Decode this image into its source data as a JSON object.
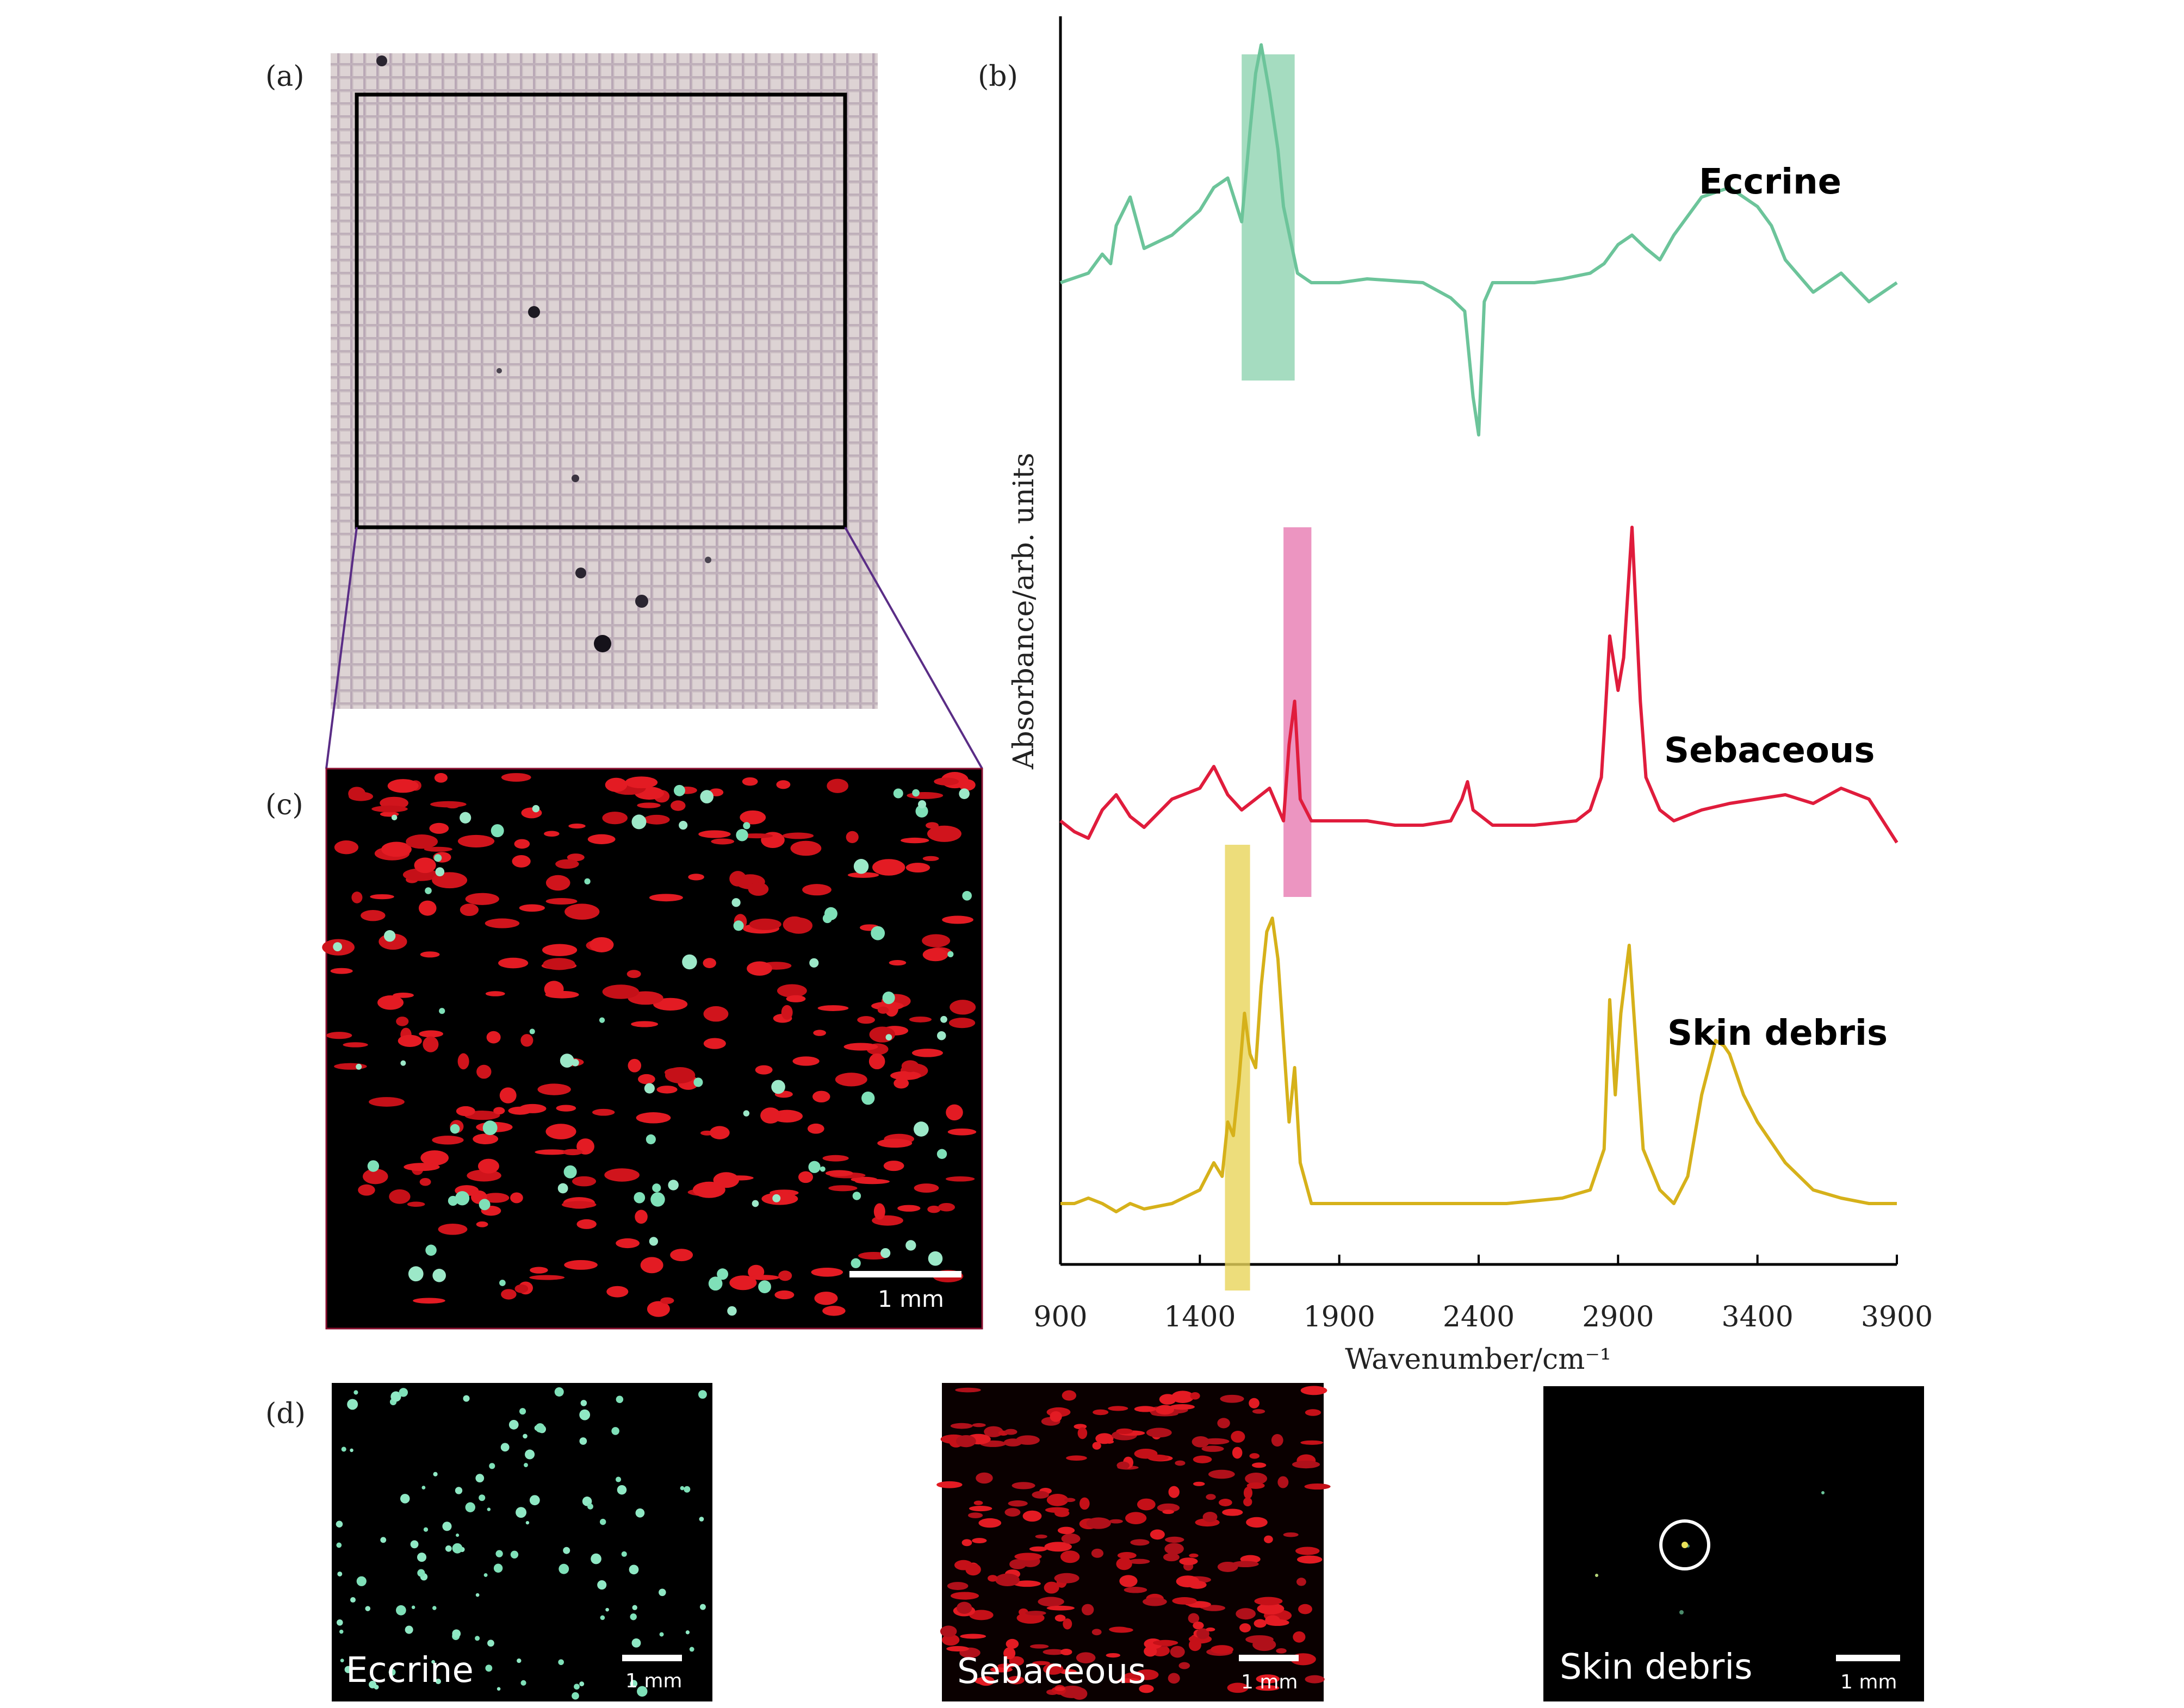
{
  "panels": {
    "a": "(a)",
    "b": "(b)",
    "c": "(c)",
    "d": "(d)"
  },
  "colors": {
    "eccrine": "#6cc49a",
    "sebaceous": "#e01c3c",
    "skin_debris": "#d6b11a",
    "eccrine_band": "#8fd3b0",
    "sebaceous_band": "#e77ab2",
    "skin_debris_band": "#e9d45a"
  },
  "scale_bar": "1 mm",
  "maps": {
    "eccrine": "Eccrine",
    "sebaceous": "Sebaceous",
    "skin_debris": "Skin debris"
  },
  "chart_data": {
    "type": "line",
    "xlabel": "Wavenumber/cm⁻¹",
    "ylabel": "Absorbance/arb. units",
    "xlim": [
      900,
      3900
    ],
    "x_ticks": [
      "900",
      "1400",
      "1900",
      "2400",
      "2900",
      "3400",
      "3900"
    ],
    "grid": false,
    "series": [
      {
        "name": "Eccrine",
        "x": [
          900,
          1000,
          1050,
          1080,
          1100,
          1150,
          1200,
          1300,
          1400,
          1450,
          1500,
          1550,
          1580,
          1600,
          1620,
          1650,
          1680,
          1700,
          1750,
          1800,
          1900,
          2000,
          2100,
          2200,
          2300,
          2350,
          2380,
          2400,
          2420,
          2450,
          2500,
          2600,
          2700,
          2800,
          2850,
          2900,
          2950,
          3000,
          3050,
          3100,
          3200,
          3300,
          3400,
          3450,
          3500,
          3600,
          3700,
          3800,
          3900
        ],
        "y": [
          0.0,
          0.05,
          0.15,
          0.1,
          0.3,
          0.45,
          0.18,
          0.25,
          0.38,
          0.5,
          0.55,
          0.32,
          0.8,
          1.1,
          1.25,
          1.0,
          0.7,
          0.4,
          0.05,
          0.0,
          0.0,
          0.02,
          0.01,
          0.0,
          -0.08,
          -0.15,
          -0.6,
          -0.8,
          -0.1,
          0.0,
          0.0,
          0.0,
          0.02,
          0.05,
          0.1,
          0.2,
          0.25,
          0.18,
          0.12,
          0.25,
          0.45,
          0.5,
          0.4,
          0.3,
          0.12,
          -0.05,
          0.05,
          -0.1,
          0.0
        ]
      },
      {
        "name": "Sebaceous",
        "x": [
          900,
          950,
          1000,
          1050,
          1100,
          1150,
          1200,
          1300,
          1400,
          1450,
          1500,
          1550,
          1600,
          1650,
          1700,
          1720,
          1740,
          1760,
          1800,
          1900,
          2000,
          2100,
          2200,
          2300,
          2340,
          2360,
          2380,
          2450,
          2600,
          2750,
          2800,
          2840,
          2850,
          2870,
          2900,
          2920,
          2950,
          2980,
          3000,
          3050,
          3100,
          3200,
          3300,
          3400,
          3500,
          3600,
          3700,
          3800,
          3850,
          3900
        ],
        "y": [
          0.0,
          -0.05,
          -0.08,
          0.05,
          0.12,
          0.02,
          -0.03,
          0.1,
          0.15,
          0.25,
          0.12,
          0.05,
          0.1,
          0.15,
          0.0,
          0.35,
          0.55,
          0.1,
          0.0,
          0.0,
          0.0,
          -0.02,
          -0.02,
          0.0,
          0.1,
          0.18,
          0.05,
          -0.02,
          -0.02,
          0.0,
          0.05,
          0.2,
          0.4,
          0.85,
          0.6,
          0.75,
          1.35,
          0.55,
          0.2,
          0.05,
          0.0,
          0.05,
          0.08,
          0.1,
          0.12,
          0.08,
          0.15,
          0.1,
          0.0,
          -0.1
        ]
      },
      {
        "name": "Skin debris",
        "x": [
          900,
          950,
          1000,
          1050,
          1100,
          1150,
          1200,
          1300,
          1400,
          1450,
          1480,
          1500,
          1520,
          1540,
          1560,
          1580,
          1600,
          1620,
          1640,
          1660,
          1680,
          1700,
          1720,
          1740,
          1760,
          1800,
          1900,
          2000,
          2200,
          2300,
          2360,
          2500,
          2700,
          2800,
          2850,
          2870,
          2890,
          2910,
          2940,
          2960,
          2990,
          3050,
          3100,
          3150,
          3200,
          3250,
          3280,
          3300,
          3350,
          3400,
          3500,
          3600,
          3700,
          3800,
          3900
        ],
        "y": [
          0.0,
          0.0,
          0.02,
          0.0,
          -0.03,
          0.0,
          -0.02,
          0.0,
          0.05,
          0.15,
          0.1,
          0.3,
          0.25,
          0.45,
          0.7,
          0.55,
          0.5,
          0.8,
          1.0,
          1.05,
          0.9,
          0.6,
          0.3,
          0.5,
          0.15,
          0.0,
          0.0,
          0.0,
          0.0,
          0.0,
          0.0,
          0.0,
          0.02,
          0.05,
          0.2,
          0.75,
          0.4,
          0.7,
          0.95,
          0.65,
          0.2,
          0.05,
          0.0,
          0.1,
          0.4,
          0.6,
          0.58,
          0.55,
          0.4,
          0.3,
          0.15,
          0.05,
          0.02,
          0.0,
          0.0
        ]
      }
    ],
    "highlight_bands": [
      {
        "series": "Eccrine",
        "x_range": [
          1550,
          1740
        ]
      },
      {
        "series": "Sebaceous",
        "x_range": [
          1700,
          1800
        ]
      },
      {
        "series": "Skin debris",
        "x_range": [
          1490,
          1580
        ]
      }
    ]
  }
}
